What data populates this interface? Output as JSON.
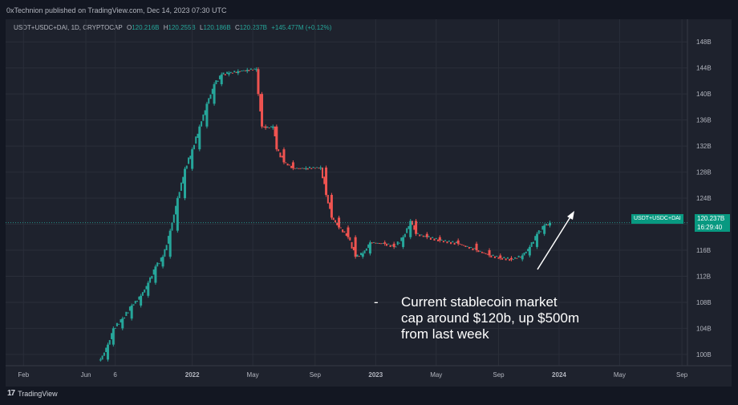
{
  "header": {
    "published": "0xTechnion published on TradingView.com, Dec 14, 2023 07:30 UTC"
  },
  "legend": {
    "symbol": "USDT+USDC+DAI, 1D, CRYPTOCAP",
    "o_label": "O",
    "o_value": "120.216B",
    "h_label": "H",
    "h_value": "120.255B",
    "l_label": "L",
    "l_value": "120.186B",
    "c_label": "C",
    "c_value": "120.237B",
    "change": "+145.477M (+0.12%)"
  },
  "price_tag": {
    "series": "USDT+USDC+DAI",
    "price": "120.237B",
    "countdown": "16:29:40"
  },
  "annotation": {
    "dash": "-",
    "line1": "Current stablecoin market",
    "line2": "cap around $120b, up $500m",
    "line3": "from last week"
  },
  "footer": {
    "brand": "TradingView",
    "mark": "17"
  },
  "colors": {
    "up": "#26a69a",
    "down": "#ef5350",
    "background": "#1e222d",
    "price_line": "#26a69a",
    "arrow": "#ffffff"
  },
  "chart_data": {
    "type": "line",
    "title": "",
    "ylabel": "",
    "ylim": [
      99,
      150
    ],
    "y_ticks": [
      "100B",
      "104B",
      "108B",
      "112B",
      "116B",
      "120B",
      "124B",
      "128B",
      "132B",
      "136B",
      "140B",
      "144B",
      "148B"
    ],
    "y_tick_values": [
      100,
      104,
      108,
      112,
      116,
      120,
      124,
      128,
      132,
      136,
      140,
      144,
      148
    ],
    "x_ticks": [
      "Feb",
      "Jun",
      "6",
      "2022",
      "May",
      "Sep",
      "2023",
      "May",
      "Sep",
      "2024",
      "May",
      "Sep"
    ],
    "x_tick_values": [
      2021.08,
      2021.42,
      2021.58,
      2022.0,
      2022.33,
      2022.67,
      2023.0,
      2023.33,
      2023.67,
      2024.0,
      2024.33,
      2024.67
    ],
    "xlim": [
      2021.0,
      2024.7
    ],
    "series": [
      {
        "points": [
          [
            2021.5,
            99.2
          ],
          [
            2021.54,
            101.5
          ],
          [
            2021.57,
            104.0
          ],
          [
            2021.62,
            105.5
          ],
          [
            2021.67,
            107.5
          ],
          [
            2021.72,
            109.0
          ],
          [
            2021.76,
            111.0
          ],
          [
            2021.8,
            113.5
          ],
          [
            2021.84,
            115.0
          ],
          [
            2021.88,
            119.0
          ],
          [
            2021.92,
            124.0
          ],
          [
            2021.96,
            128.5
          ],
          [
            2022.0,
            131.5
          ],
          [
            2022.04,
            135.0
          ],
          [
            2022.08,
            138.5
          ],
          [
            2022.12,
            141.5
          ],
          [
            2022.16,
            143.0
          ],
          [
            2022.2,
            143.2
          ],
          [
            2022.25,
            143.5
          ],
          [
            2022.3,
            143.7
          ],
          [
            2022.35,
            143.8
          ],
          [
            2022.36,
            140.0
          ],
          [
            2022.38,
            135.0
          ],
          [
            2022.4,
            134.8
          ],
          [
            2022.44,
            135.0
          ],
          [
            2022.46,
            131.5
          ],
          [
            2022.5,
            129.5
          ],
          [
            2022.55,
            128.6
          ],
          [
            2022.62,
            128.6
          ],
          [
            2022.7,
            128.7
          ],
          [
            2022.73,
            124.5
          ],
          [
            2022.76,
            121.0
          ],
          [
            2022.8,
            119.5
          ],
          [
            2022.85,
            118.0
          ],
          [
            2022.89,
            115.0
          ],
          [
            2022.93,
            115.5
          ],
          [
            2022.97,
            117.2
          ],
          [
            2023.05,
            117.0
          ],
          [
            2023.1,
            116.5
          ],
          [
            2023.15,
            118.0
          ],
          [
            2023.19,
            120.5
          ],
          [
            2023.22,
            118.5
          ],
          [
            2023.28,
            118.0
          ],
          [
            2023.35,
            117.5
          ],
          [
            2023.45,
            117.0
          ],
          [
            2023.55,
            116.0
          ],
          [
            2023.62,
            115.2
          ],
          [
            2023.68,
            114.8
          ],
          [
            2023.74,
            114.6
          ],
          [
            2023.8,
            115.2
          ],
          [
            2023.84,
            116.5
          ],
          [
            2023.88,
            118.5
          ],
          [
            2023.92,
            119.8
          ],
          [
            2023.95,
            120.24
          ]
        ]
      }
    ],
    "last_value": 120.237,
    "legend": "none",
    "grid": true
  }
}
